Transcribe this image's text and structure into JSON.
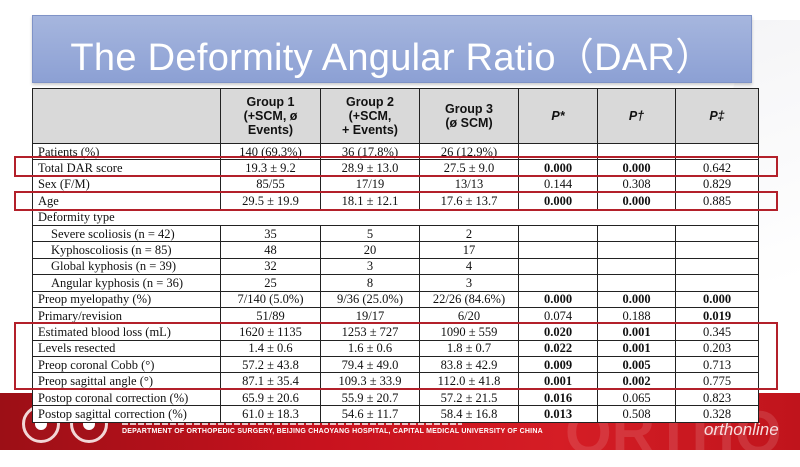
{
  "title": "The Deformity Angular Ratio（DAR）",
  "table": {
    "headers": [
      "",
      "Group 1\n(+SCM, ø\nEvents)",
      "Group 2\n(+SCM,\n+ Events)",
      "Group 3\n(ø SCM)",
      "P*",
      "P†",
      "P‡"
    ],
    "rows": [
      {
        "label": "Patients (%)",
        "g1": "140 (69.3%)",
        "g2": "36 (17.8%)",
        "g3": "26 (12.9%)",
        "p": [
          {
            "v": "",
            "b": false
          },
          {
            "v": "",
            "b": false
          },
          {
            "v": "",
            "b": false
          }
        ]
      },
      {
        "label": "Total DAR score",
        "g1": "19.3 ± 9.2",
        "g2": "28.9 ± 13.0",
        "g3": "27.5 ± 9.0",
        "p": [
          {
            "v": "0.000",
            "b": true
          },
          {
            "v": "0.000",
            "b": true
          },
          {
            "v": "0.642",
            "b": false
          }
        ]
      },
      {
        "label": "Sex (F/M)",
        "g1": "85/55",
        "g2": "17/19",
        "g3": "13/13",
        "p": [
          {
            "v": "0.144",
            "b": false
          },
          {
            "v": "0.308",
            "b": false
          },
          {
            "v": "0.829",
            "b": false
          }
        ]
      },
      {
        "label": "Age",
        "g1": "29.5 ± 19.9",
        "g2": "18.1 ± 12.1",
        "g3": "17.6 ± 13.7",
        "p": [
          {
            "v": "0.000",
            "b": true
          },
          {
            "v": "0.000",
            "b": true
          },
          {
            "v": "0.885",
            "b": false
          }
        ]
      },
      {
        "label": "Deformity type",
        "section": true
      },
      {
        "label": "Severe scoliosis (n = 42)",
        "indent": true,
        "g1": "35",
        "g2": "5",
        "g3": "2",
        "p": [
          {
            "v": "",
            "b": false
          },
          {
            "v": "",
            "b": false
          },
          {
            "v": "",
            "b": false
          }
        ]
      },
      {
        "label": "Kyphoscoliosis (n = 85)",
        "indent": true,
        "g1": "48",
        "g2": "20",
        "g3": "17",
        "p": [
          {
            "v": "",
            "b": false
          },
          {
            "v": "",
            "b": false
          },
          {
            "v": "",
            "b": false
          }
        ]
      },
      {
        "label": "Global kyphosis (n = 39)",
        "indent": true,
        "g1": "32",
        "g2": "3",
        "g3": "4",
        "p": [
          {
            "v": "",
            "b": false
          },
          {
            "v": "",
            "b": false
          },
          {
            "v": "",
            "b": false
          }
        ]
      },
      {
        "label": "Angular kyphosis (n = 36)",
        "indent": true,
        "g1": "25",
        "g2": "8",
        "g3": "3",
        "p": [
          {
            "v": "",
            "b": false
          },
          {
            "v": "",
            "b": false
          },
          {
            "v": "",
            "b": false
          }
        ]
      },
      {
        "label": "Preop myelopathy (%)",
        "g1": "7/140 (5.0%)",
        "g2": "9/36 (25.0%)",
        "g3": "22/26 (84.6%)",
        "p": [
          {
            "v": "0.000",
            "b": true
          },
          {
            "v": "0.000",
            "b": true
          },
          {
            "v": "0.000",
            "b": true
          }
        ]
      },
      {
        "label": "Primary/revision",
        "g1": "51/89",
        "g2": "19/17",
        "g3": "6/20",
        "p": [
          {
            "v": "0.074",
            "b": false
          },
          {
            "v": "0.188",
            "b": false
          },
          {
            "v": "0.019",
            "b": true
          }
        ]
      },
      {
        "label": "Estimated blood loss (mL)",
        "g1": "1620 ± 1135",
        "g2": "1253 ± 727",
        "g3": "1090 ± 559",
        "p": [
          {
            "v": "0.020",
            "b": true
          },
          {
            "v": "0.001",
            "b": true
          },
          {
            "v": "0.345",
            "b": false
          }
        ]
      },
      {
        "label": "Levels resected",
        "g1": "1.4 ± 0.6",
        "g2": "1.6 ± 0.6",
        "g3": "1.8 ± 0.7",
        "p": [
          {
            "v": "0.022",
            "b": true
          },
          {
            "v": "0.001",
            "b": true
          },
          {
            "v": "0.203",
            "b": false
          }
        ]
      },
      {
        "label": "Preop coronal Cobb (°)",
        "g1": "57.2 ± 43.8",
        "g2": "79.4 ± 49.0",
        "g3": "83.8 ± 42.9",
        "p": [
          {
            "v": "0.009",
            "b": true
          },
          {
            "v": "0.005",
            "b": true
          },
          {
            "v": "0.713",
            "b": false
          }
        ]
      },
      {
        "label": "Preop sagittal angle (°)",
        "g1": "87.1 ± 35.4",
        "g2": "109.3 ± 33.9",
        "g3": "112.0 ± 41.8",
        "p": [
          {
            "v": "0.001",
            "b": true
          },
          {
            "v": "0.002",
            "b": true
          },
          {
            "v": "0.775",
            "b": false
          }
        ]
      },
      {
        "label": "Postop coronal correction (%)",
        "g1": "65.9 ± 20.6",
        "g2": "55.9 ± 20.7",
        "g3": "57.2 ± 21.5",
        "p": [
          {
            "v": "0.016",
            "b": true
          },
          {
            "v": "0.065",
            "b": false
          },
          {
            "v": "0.823",
            "b": false
          }
        ]
      },
      {
        "label": "Postop sagittal correction (%)",
        "g1": "61.0 ± 18.3",
        "g2": "54.6 ± 11.7",
        "g3": "58.4 ± 16.8",
        "p": [
          {
            "v": "0.013",
            "b": true
          },
          {
            "v": "0.508",
            "b": false
          },
          {
            "v": "0.328",
            "b": false
          }
        ]
      }
    ]
  },
  "footer": {
    "department": "DEPARTMENT OF ORTHOPEDIC SURGERY, BEIJING CHAOYANG HOSPITAL, CAPITAL MEDICAL UNIVERSITY OF CHINA",
    "watermark": "ORTHO",
    "brand": "orthonline"
  },
  "colors": {
    "highlight": "#b3202a",
    "banner": "#c8121e",
    "title_box": "#9aacd9"
  }
}
